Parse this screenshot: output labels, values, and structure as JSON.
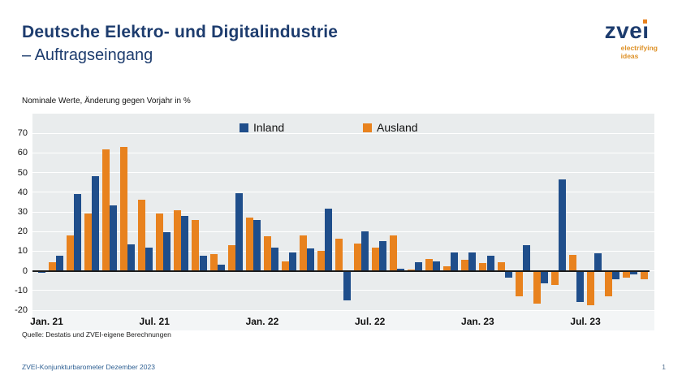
{
  "header": {
    "title_line1": "Deutsche Elektro- und Digitalindustrie",
    "title_line2": "– Auftragseingang"
  },
  "logo": {
    "brand": "zve",
    "brand_last_letter": "i",
    "tagline_line1": "electrifying",
    "tagline_line2": "ideas"
  },
  "subtitle": "Nominale Werte, Änderung gegen Vorjahr in %",
  "source": "Quelle: Destatis und ZVEI-eigene Berechnungen",
  "footer": {
    "left": "ZVEI-Konjunkturbarometer Dezember 2023",
    "page": "1"
  },
  "colors": {
    "inland": "#1F4E8B",
    "ausland": "#E8821E",
    "title_navy": "#1D3C6E",
    "plot_bg": "#E9ECED",
    "footer_blue": "#2F6093"
  },
  "chart_data": {
    "type": "bar",
    "title": "Deutsche Elektro- und Digitalindustrie – Auftragseingang",
    "xlabel": "",
    "ylabel": "Nominale Werte, Änderung gegen Vorjahr in %",
    "ylim": [
      -20,
      80
    ],
    "yticks": [
      70,
      60,
      50,
      40,
      30,
      20,
      10,
      0,
      -10,
      -20
    ],
    "grid": "horizontal-white-on-gray",
    "legend_position": "top-center-inside",
    "x": [
      "2021-01",
      "2021-02",
      "2021-03",
      "2021-04",
      "2021-05",
      "2021-06",
      "2021-07",
      "2021-08",
      "2021-09",
      "2021-10",
      "2021-11",
      "2021-12",
      "2022-01",
      "2022-02",
      "2022-03",
      "2022-04",
      "2022-05",
      "2022-06",
      "2022-07",
      "2022-08",
      "2022-09",
      "2022-10",
      "2022-11",
      "2022-12",
      "2023-01",
      "2023-02",
      "2023-03",
      "2023-04",
      "2023-05",
      "2023-06",
      "2023-07",
      "2023-08",
      "2023-09",
      "2023-10"
    ],
    "visible_xticks": [
      {
        "label": "Jan. 21",
        "month_index": 0
      },
      {
        "label": "Jul. 21",
        "month_index": 6
      },
      {
        "label": "Jan. 22",
        "month_index": 12
      },
      {
        "label": "Jul. 22",
        "month_index": 18
      },
      {
        "label": "Jan. 23",
        "month_index": 24
      },
      {
        "label": "Jul. 23",
        "month_index": 30
      }
    ],
    "series": [
      {
        "name": "Inland",
        "color": "#1F4E8B",
        "values": [
          -1,
          7.5,
          39,
          48,
          33.5,
          13.5,
          12,
          19.5,
          28,
          7.5,
          3,
          39.5,
          26,
          12,
          9.5,
          11.5,
          31.5,
          -15,
          20,
          15,
          1,
          4.5,
          5,
          9.5,
          9.5,
          7.5,
          -3.5,
          13,
          -6.5,
          46.5,
          -16,
          9,
          -4.5,
          -2
        ]
      },
      {
        "name": "Ausland",
        "color": "#E8821E",
        "values": [
          4.5,
          18,
          29,
          62,
          63,
          36,
          29,
          31,
          26,
          8.5,
          13,
          27,
          17.5,
          5,
          18,
          10,
          16.5,
          14,
          12,
          18,
          0.5,
          6,
          2.5,
          5.5,
          4,
          4.5,
          -13,
          -16.5,
          -7,
          8,
          -17.5,
          -13,
          -3.5,
          -4.5
        ]
      }
    ]
  }
}
